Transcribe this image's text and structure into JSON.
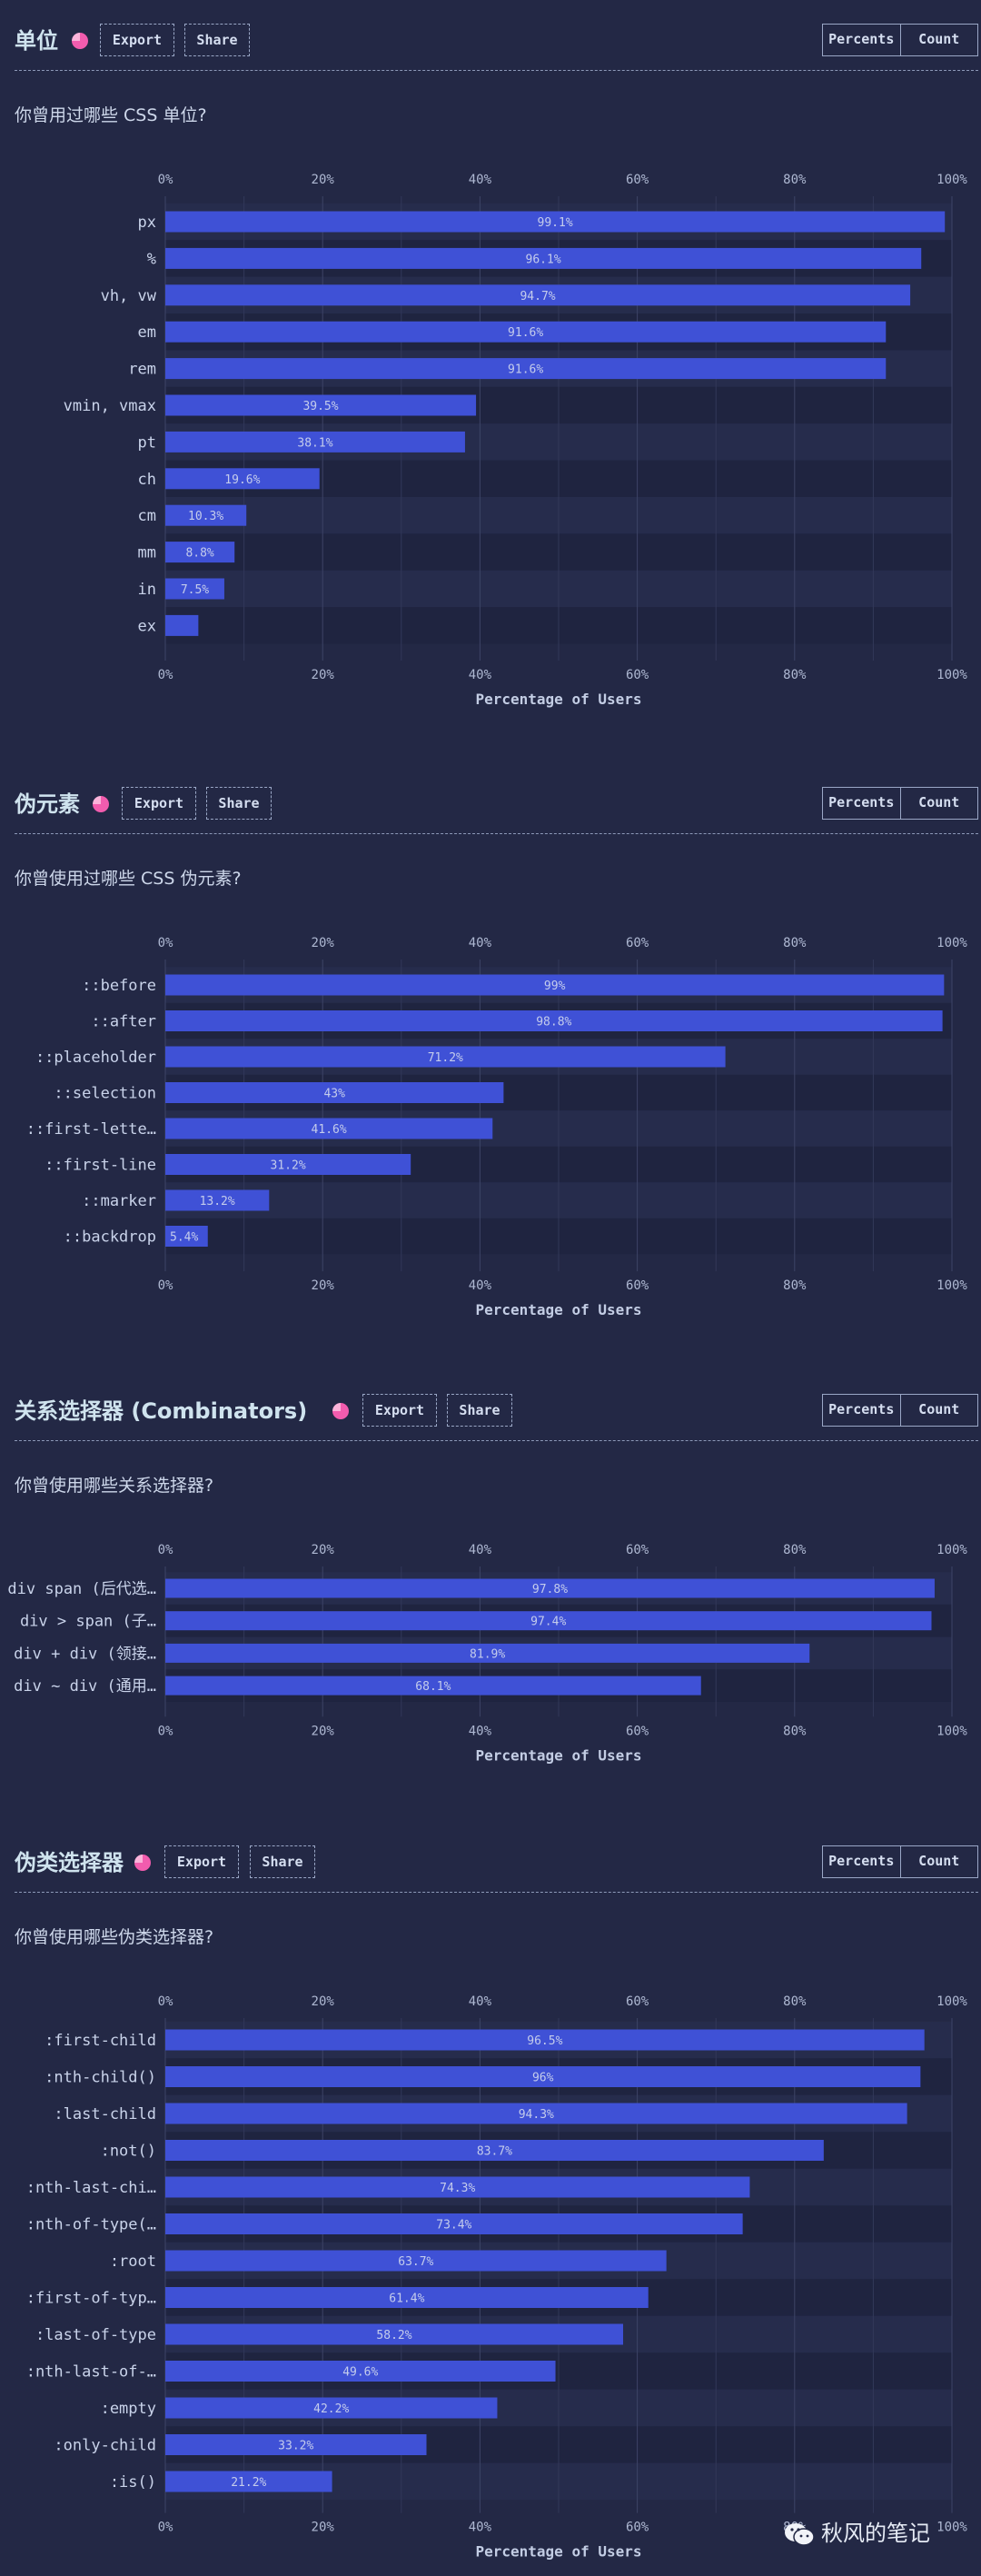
{
  "buttons": {
    "export": "Export",
    "share": "Share",
    "percents": "Percents",
    "count": "Count"
  },
  "axis": {
    "xlabel": "Percentage of Users",
    "ticks": [
      "0%",
      "20%",
      "40%",
      "60%",
      "80%",
      "100%"
    ]
  },
  "colors": {
    "background": "#232845",
    "bar": "#3f51d6",
    "pie_icon": "#f25cae"
  },
  "watermark": "秋风的笔记",
  "sections": [
    {
      "title": "单位",
      "question": "你曾用过哪些 CSS 单位?"
    },
    {
      "title": "伪元素",
      "question": "你曾使用过哪些 CSS 伪元素?"
    },
    {
      "title": "关系选择器 (Combinators)",
      "question": "你曾使用哪些关系选择器?"
    },
    {
      "title": "伪类选择器",
      "question": "你曾使用哪些伪类选择器?"
    }
  ],
  "chart_data": [
    {
      "type": "bar",
      "orientation": "horizontal",
      "categories": [
        "px",
        "%",
        "vh, vw",
        "em",
        "rem",
        "vmin, vmax",
        "pt",
        "ch",
        "cm",
        "mm",
        "in",
        "ex"
      ],
      "values": [
        99.1,
        96.1,
        94.7,
        91.6,
        91.6,
        39.5,
        38.1,
        19.6,
        10.3,
        8.8,
        7.5,
        4.2
      ],
      "labels": [
        "99.1%",
        "96.1%",
        "94.7%",
        "91.6%",
        "91.6%",
        "39.5%",
        "38.1%",
        "19.6%",
        "10.3%",
        "8.8%",
        "7.5%",
        ""
      ],
      "xlabel": "Percentage of Users",
      "xlim": [
        0,
        100
      ],
      "grid": true
    },
    {
      "type": "bar",
      "orientation": "horizontal",
      "categories": [
        "::before",
        "::after",
        "::placeholder",
        "::selection",
        "::first-lette…",
        "::first-line",
        "::marker",
        "::backdrop"
      ],
      "values": [
        99,
        98.8,
        71.2,
        43,
        41.6,
        31.2,
        13.2,
        5.4
      ],
      "labels": [
        "99%",
        "98.8%",
        "71.2%",
        "43%",
        "41.6%",
        "31.2%",
        "13.2%",
        "5.4%"
      ],
      "xlabel": "Percentage of Users",
      "xlim": [
        0,
        100
      ],
      "grid": true
    },
    {
      "type": "bar",
      "orientation": "horizontal",
      "categories": [
        "div span (后代选…",
        "div > span (子…",
        "div + div (领接…",
        "div ~ div (通用…"
      ],
      "values": [
        97.8,
        97.4,
        81.9,
        68.1
      ],
      "labels": [
        "97.8%",
        "97.4%",
        "81.9%",
        "68.1%"
      ],
      "xlabel": "Percentage of Users",
      "xlim": [
        0,
        100
      ],
      "grid": true
    },
    {
      "type": "bar",
      "orientation": "horizontal",
      "categories": [
        ":first-child",
        ":nth-child()",
        ":last-child",
        ":not()",
        ":nth-last-chi…",
        ":nth-of-type(…",
        ":root",
        ":first-of-typ…",
        ":last-of-type",
        ":nth-last-of-…",
        ":empty",
        ":only-child",
        ":is()"
      ],
      "values": [
        96.5,
        96,
        94.3,
        83.7,
        74.3,
        73.4,
        63.7,
        61.4,
        58.2,
        49.6,
        42.2,
        33.2,
        21.2
      ],
      "labels": [
        "96.5%",
        "96%",
        "94.3%",
        "83.7%",
        "74.3%",
        "73.4%",
        "63.7%",
        "61.4%",
        "58.2%",
        "49.6%",
        "42.2%",
        "33.2%",
        "21.2%"
      ],
      "xlabel": "Percentage of Users",
      "xlim": [
        0,
        100
      ],
      "grid": true
    }
  ]
}
